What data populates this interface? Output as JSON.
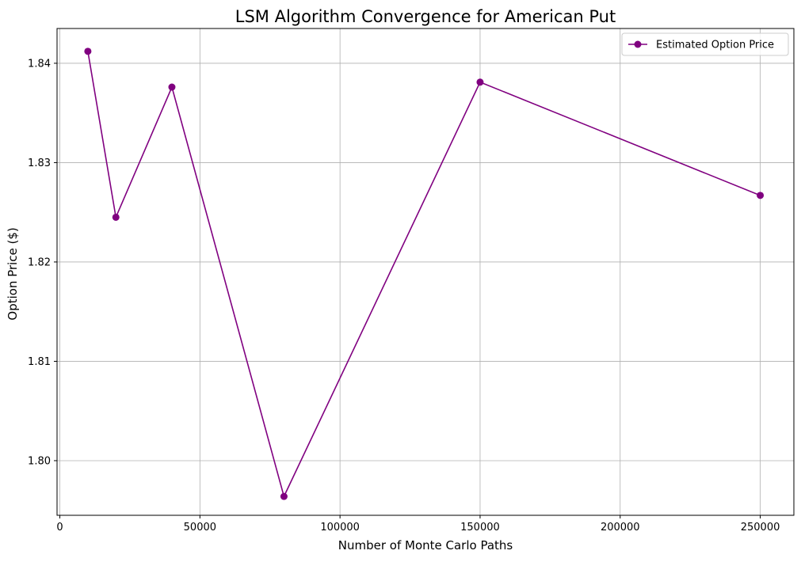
{
  "chart_data": {
    "type": "line",
    "title": "LSM Algorithm Convergence for American Put",
    "xlabel": "Number of Monte Carlo Paths",
    "ylabel": "Option Price ($)",
    "xlim": [
      -1000,
      262000
    ],
    "ylim": [
      1.7945,
      1.8435
    ],
    "x_ticks": [
      0,
      50000,
      100000,
      150000,
      200000,
      250000
    ],
    "x_tick_labels": [
      "0",
      "50000",
      "100000",
      "150000",
      "200000",
      "250000"
    ],
    "y_ticks": [
      1.8,
      1.81,
      1.82,
      1.83,
      1.84
    ],
    "y_tick_labels": [
      "1.80",
      "1.81",
      "1.82",
      "1.83",
      "1.84"
    ],
    "grid": true,
    "legend_position": "top-right",
    "series": [
      {
        "name": "Estimated Option Price",
        "color": "#800080",
        "marker": "circle",
        "x": [
          10000,
          20000,
          40000,
          80000,
          150000,
          250000
        ],
        "y": [
          1.8412,
          1.8245,
          1.8376,
          1.7964,
          1.8381,
          1.8267
        ]
      }
    ]
  }
}
